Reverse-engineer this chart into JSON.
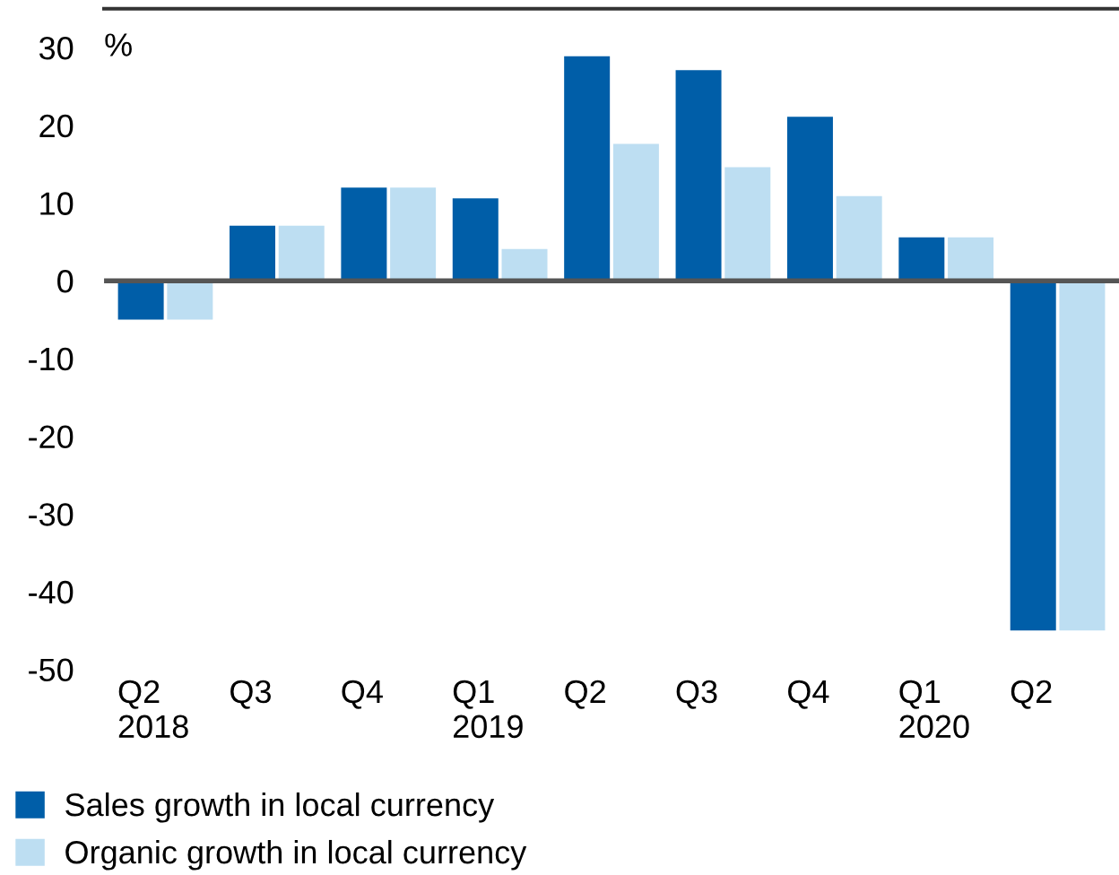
{
  "chart_data": {
    "type": "bar",
    "ylabel": "%",
    "categories": [
      "Q2\n2018",
      "Q3",
      "Q4",
      "Q1\n2019",
      "Q2",
      "Q3",
      "Q4",
      "Q1\n2020",
      "Q2"
    ],
    "series": [
      {
        "name": "Sales growth in local currency",
        "color": "#005ea8",
        "values": [
          -5,
          7.1,
          12,
          10.6,
          28.9,
          27.1,
          21.1,
          5.6,
          -45
        ]
      },
      {
        "name": "Organic growth in local currency",
        "color": "#bddef2",
        "values": [
          -5,
          7.1,
          12,
          4.1,
          17.6,
          14.6,
          10.9,
          5.6,
          -45
        ]
      }
    ],
    "ylim": [
      -50,
      35
    ],
    "yticks": [
      -50,
      -40,
      -30,
      -20,
      -10,
      0,
      10,
      20,
      30
    ],
    "ref_lines": [
      {
        "axis": "y",
        "value": 0,
        "color": "#555555"
      }
    ],
    "grid": false,
    "legend": "bottom left"
  }
}
